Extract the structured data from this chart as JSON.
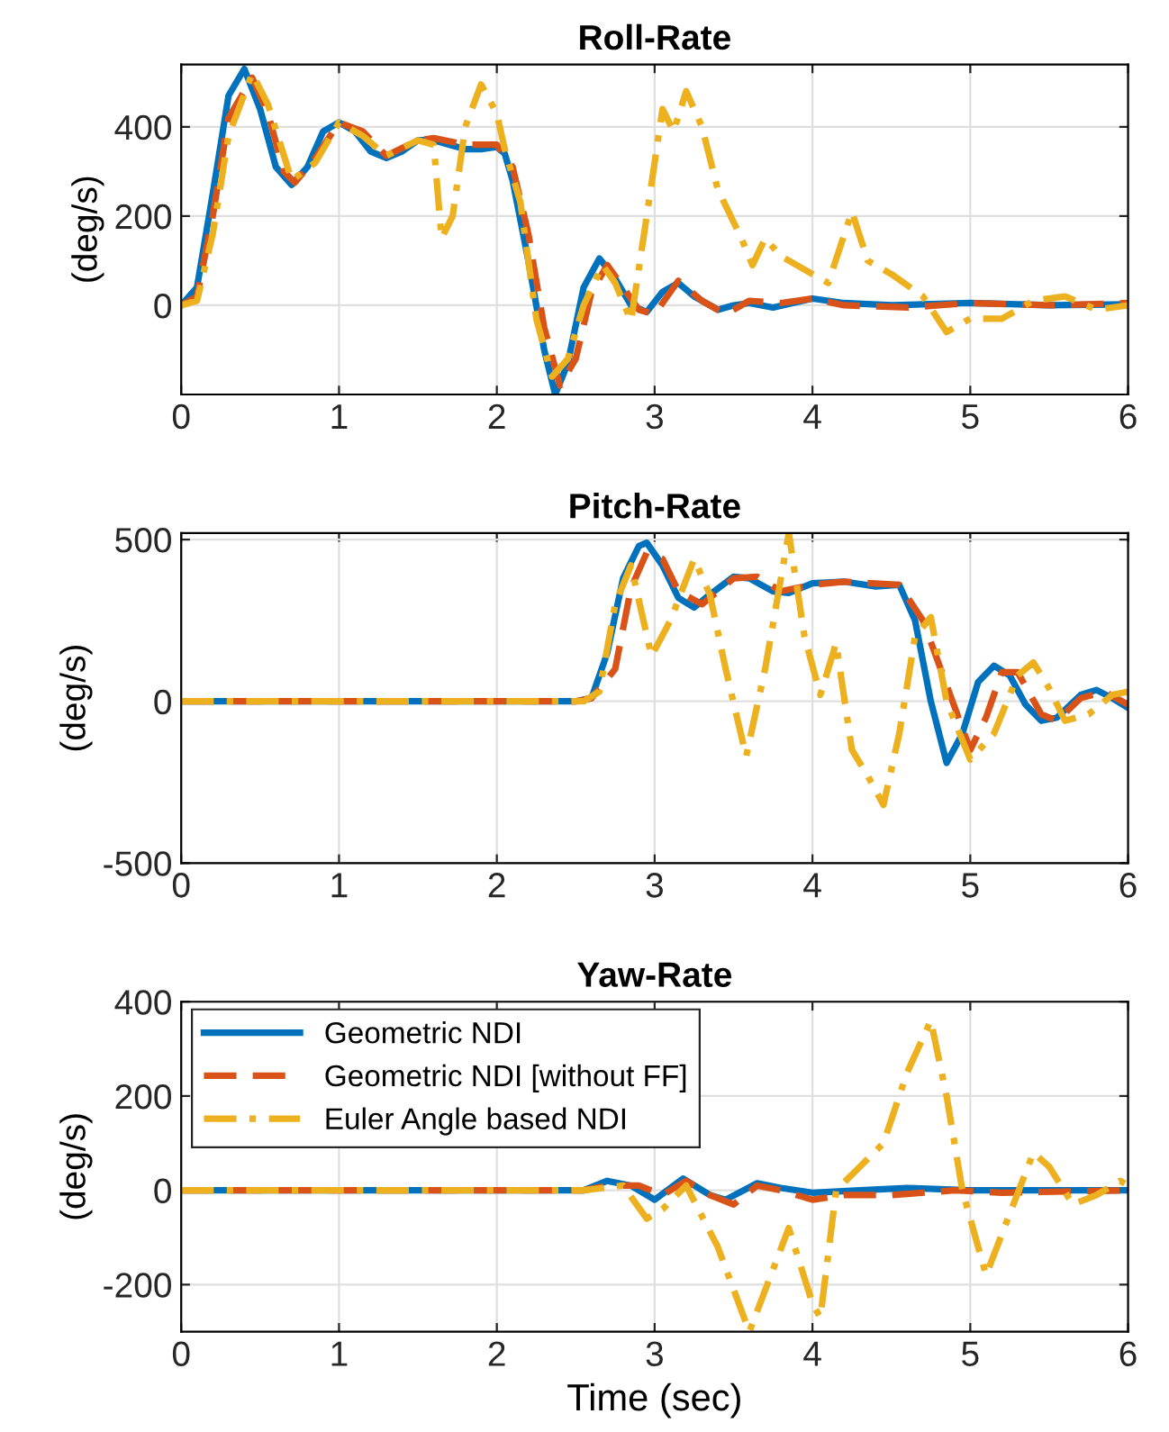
{
  "chart_data": [
    {
      "type": "line",
      "title": "Roll-Rate",
      "ylabel": "(deg/s)",
      "xlim": [
        0,
        6
      ],
      "xticks": [
        0,
        1,
        2,
        3,
        4,
        5,
        6
      ],
      "ylim": [
        -200,
        540
      ],
      "yticks": [
        0,
        200,
        400
      ],
      "grid": true,
      "series": [
        {
          "color": "#0072bd",
          "line_style": "solid",
          "x": [
            0,
            0.1,
            0.2,
            0.3,
            0.4,
            0.5,
            0.6,
            0.7,
            0.8,
            0.9,
            1.0,
            1.1,
            1.2,
            1.3,
            1.4,
            1.5,
            1.6,
            1.7,
            1.8,
            1.9,
            2.0,
            2.05,
            2.1,
            2.2,
            2.3,
            2.37,
            2.45,
            2.55,
            2.65,
            2.75,
            2.85,
            2.95,
            3.05,
            3.15,
            3.25,
            3.4,
            3.5,
            3.6,
            3.75,
            4.0,
            4.2,
            4.5,
            5.0,
            5.5,
            6
          ],
          "values": [
            0,
            40,
            250,
            470,
            530,
            440,
            310,
            270,
            310,
            390,
            410,
            390,
            345,
            330,
            345,
            370,
            370,
            360,
            350,
            350,
            355,
            340,
            280,
            100,
            -100,
            -200,
            -130,
            40,
            105,
            60,
            0,
            -15,
            30,
            50,
            20,
            -10,
            0,
            5,
            -5,
            15,
            5,
            0,
            5,
            0,
            2
          ]
        },
        {
          "color": "#d95319",
          "line_style": "dashed",
          "x": [
            0,
            0.1,
            0.2,
            0.3,
            0.45,
            0.55,
            0.65,
            0.72,
            0.85,
            1.0,
            1.15,
            1.3,
            1.5,
            1.6,
            1.8,
            2.0,
            2.1,
            2.2,
            2.3,
            2.4,
            2.5,
            2.6,
            2.7,
            2.8,
            2.9,
            3.0,
            3.15,
            3.3,
            3.45,
            3.6,
            3.8,
            4.0,
            4.2,
            4.6,
            5.0,
            5.5,
            6
          ],
          "values": [
            0,
            20,
            200,
            420,
            510,
            430,
            300,
            275,
            330,
            410,
            390,
            335,
            370,
            375,
            360,
            360,
            310,
            160,
            -50,
            -180,
            -120,
            30,
            90,
            40,
            -10,
            -20,
            55,
            10,
            -20,
            10,
            5,
            15,
            0,
            -5,
            5,
            0,
            5
          ]
        },
        {
          "color": "#edb120",
          "line_style": "dashdot",
          "x": [
            0,
            0.1,
            0.2,
            0.3,
            0.45,
            0.55,
            0.7,
            0.85,
            1.0,
            1.15,
            1.3,
            1.5,
            1.6,
            1.65,
            1.72,
            1.8,
            1.9,
            2.0,
            2.05,
            2.15,
            2.25,
            2.35,
            2.45,
            2.55,
            2.67,
            2.75,
            2.85,
            2.95,
            3.05,
            3.12,
            3.2,
            3.3,
            3.4,
            3.55,
            3.62,
            3.7,
            3.8,
            4.0,
            4.1,
            4.25,
            4.35,
            4.5,
            4.7,
            4.85,
            5.0,
            5.2,
            5.4,
            5.6,
            5.8,
            6
          ],
          "values": [
            0,
            10,
            160,
            380,
            520,
            450,
            280,
            320,
            410,
            380,
            335,
            370,
            360,
            150,
            200,
            400,
            495,
            430,
            350,
            230,
            -30,
            -160,
            -120,
            0,
            90,
            50,
            -35,
            200,
            440,
            390,
            480,
            400,
            260,
            150,
            90,
            150,
            110,
            70,
            50,
            210,
            100,
            70,
            20,
            -60,
            -30,
            -30,
            10,
            20,
            -10,
            0
          ]
        }
      ]
    },
    {
      "type": "line",
      "title": "Pitch-Rate",
      "ylabel": "(deg/s)",
      "xlim": [
        0,
        6
      ],
      "xticks": [
        0,
        1,
        2,
        3,
        4,
        5,
        6
      ],
      "ylim": [
        -500,
        520
      ],
      "yticks": [
        -500,
        0,
        500
      ],
      "grid": true,
      "series": [
        {
          "color": "#0072bd",
          "line_style": "solid",
          "x": [
            0,
            2.5,
            2.6,
            2.7,
            2.8,
            2.9,
            2.95,
            3.05,
            3.15,
            3.25,
            3.35,
            3.5,
            3.6,
            3.75,
            3.85,
            4.0,
            4.2,
            4.4,
            4.55,
            4.65,
            4.75,
            4.85,
            4.95,
            5.05,
            5.15,
            5.25,
            5.35,
            5.45,
            5.55,
            5.7,
            5.8,
            5.9,
            6
          ],
          "values": [
            0,
            0,
            10,
            150,
            380,
            480,
            490,
            420,
            320,
            290,
            330,
            385,
            380,
            340,
            335,
            365,
            370,
            355,
            360,
            250,
            0,
            -190,
            -100,
            60,
            110,
            80,
            -10,
            -60,
            -50,
            20,
            35,
            10,
            -20
          ]
        },
        {
          "color": "#d95319",
          "line_style": "dashed",
          "x": [
            0,
            2.5,
            2.6,
            2.75,
            2.85,
            2.95,
            3.05,
            3.15,
            3.3,
            3.5,
            3.65,
            3.8,
            4.0,
            4.2,
            4.55,
            4.7,
            4.85,
            5.0,
            5.1,
            5.2,
            5.3,
            5.45,
            5.55,
            5.7,
            5.85,
            6
          ],
          "values": [
            0,
            0,
            10,
            100,
            350,
            460,
            440,
            340,
            300,
            380,
            385,
            340,
            360,
            370,
            360,
            250,
            50,
            -150,
            -50,
            90,
            90,
            -40,
            -60,
            10,
            30,
            -10
          ]
        },
        {
          "color": "#edb120",
          "line_style": "dashdot",
          "x": [
            0,
            2.55,
            2.65,
            2.75,
            2.85,
            2.98,
            3.1,
            3.25,
            3.35,
            3.45,
            3.58,
            3.7,
            3.85,
            3.95,
            4.05,
            4.15,
            4.25,
            4.35,
            4.45,
            4.55,
            4.65,
            4.75,
            4.85,
            5.0,
            5.15,
            5.3,
            5.4,
            5.5,
            5.6,
            5.75,
            5.9,
            6
          ],
          "values": [
            0,
            0,
            30,
            300,
            420,
            140,
            250,
            440,
            330,
            100,
            -170,
            100,
            520,
            200,
            20,
            180,
            -150,
            -230,
            -320,
            -100,
            200,
            260,
            0,
            -180,
            -100,
            80,
            120,
            40,
            -60,
            -40,
            20,
            30
          ]
        }
      ]
    },
    {
      "type": "line",
      "title": "Yaw-Rate",
      "ylabel": "(deg/s)",
      "xlabel": "Time (sec)",
      "xlim": [
        0,
        6
      ],
      "xticks": [
        0,
        1,
        2,
        3,
        4,
        5,
        6
      ],
      "ylim": [
        -300,
        400
      ],
      "yticks": [
        -200,
        0,
        200,
        400
      ],
      "grid": true,
      "legend": "top left",
      "series": [
        {
          "name": "Geometric NDI",
          "color": "#0072bd",
          "line_style": "solid",
          "x": [
            0,
            2.55,
            2.7,
            2.85,
            3.0,
            3.18,
            3.35,
            3.45,
            3.65,
            3.8,
            4.0,
            4.3,
            4.6,
            5.0,
            6
          ],
          "values": [
            0,
            0,
            20,
            10,
            -20,
            25,
            -10,
            -20,
            15,
            5,
            -5,
            0,
            5,
            0,
            0
          ]
        },
        {
          "name": "Geometric NDI [without FF]",
          "color": "#d95319",
          "line_style": "dashed",
          "x": [
            0,
            2.55,
            2.7,
            2.9,
            3.05,
            3.2,
            3.35,
            3.5,
            3.65,
            3.8,
            4.0,
            4.2,
            4.5,
            4.9,
            5.2,
            6
          ],
          "values": [
            0,
            0,
            10,
            10,
            -10,
            20,
            -10,
            -30,
            10,
            0,
            -20,
            -10,
            -10,
            0,
            -5,
            0
          ]
        },
        {
          "name": "Euler Angle based NDI",
          "color": "#edb120",
          "line_style": "dashdot",
          "x": [
            0,
            2.55,
            2.8,
            2.95,
            3.05,
            3.2,
            3.4,
            3.6,
            3.85,
            4.0,
            4.05,
            4.15,
            4.3,
            4.45,
            4.6,
            4.75,
            4.85,
            4.95,
            5.1,
            5.25,
            5.4,
            5.5,
            5.65,
            5.8,
            5.95,
            6
          ],
          "values": [
            0,
            0,
            10,
            -60,
            -40,
            10,
            -120,
            -300,
            -80,
            -240,
            -270,
            0,
            50,
            100,
            250,
            360,
            200,
            0,
            -180,
            -50,
            80,
            50,
            -30,
            -10,
            20,
            10
          ]
        }
      ]
    }
  ]
}
